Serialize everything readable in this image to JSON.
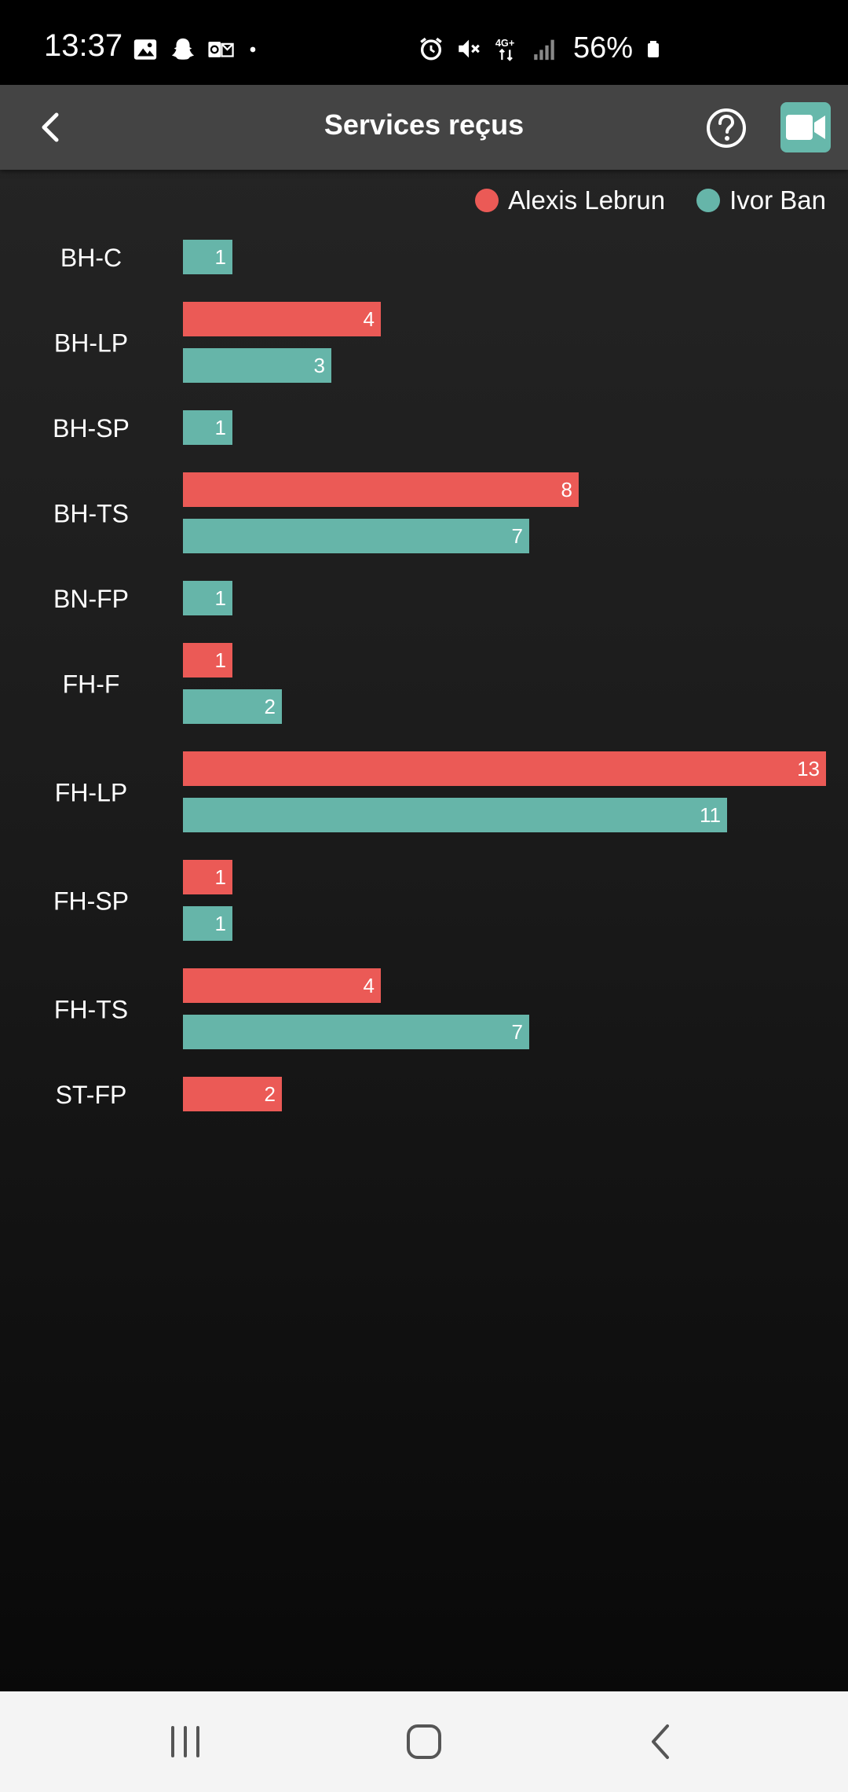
{
  "status_bar": {
    "time": "13:37",
    "battery": "56%",
    "left_icons": [
      "gallery-icon",
      "snapchat-icon",
      "outlook-icon",
      "dot-icon"
    ],
    "right_icons": [
      "alarm-icon",
      "mute-icon",
      "network-4g-icon",
      "signal-icon",
      "battery-icon"
    ]
  },
  "header": {
    "title": "Services reçus",
    "back_icon": "chevron-left-icon",
    "help_icon": "help-circle-icon",
    "video_icon": "video-camera-icon",
    "video_color": "#67b8ab"
  },
  "colors": {
    "red": "#eb5a56",
    "teal": "#66b5a9"
  },
  "chart_data": {
    "type": "bar",
    "orientation": "horizontal",
    "title": "",
    "xlabel": "",
    "ylabel": "",
    "legend_position": "top-right",
    "series": [
      {
        "name": "Alexis Lebrun",
        "color": "#eb5a56"
      },
      {
        "name": "Ivor Ban",
        "color": "#66b5a9"
      }
    ],
    "categories": [
      {
        "label": "BH-C",
        "values": [
          null,
          1
        ]
      },
      {
        "label": "BH-LP",
        "values": [
          4,
          3
        ]
      },
      {
        "label": "BH-SP",
        "values": [
          null,
          1
        ]
      },
      {
        "label": "BH-TS",
        "values": [
          8,
          7
        ]
      },
      {
        "label": "BN-FP",
        "values": [
          null,
          1
        ]
      },
      {
        "label": "FH-F",
        "values": [
          1,
          2
        ]
      },
      {
        "label": "FH-LP",
        "values": [
          13,
          11
        ]
      },
      {
        "label": "FH-SP",
        "values": [
          1,
          1
        ]
      },
      {
        "label": "FH-TS",
        "values": [
          4,
          7
        ]
      },
      {
        "label": "ST-FP",
        "values": [
          2,
          null
        ]
      }
    ],
    "xlim": [
      0,
      13
    ]
  },
  "nav_bar": {
    "recent_icon": "recent-apps-icon",
    "home_icon": "home-icon",
    "back_icon": "back-icon"
  }
}
